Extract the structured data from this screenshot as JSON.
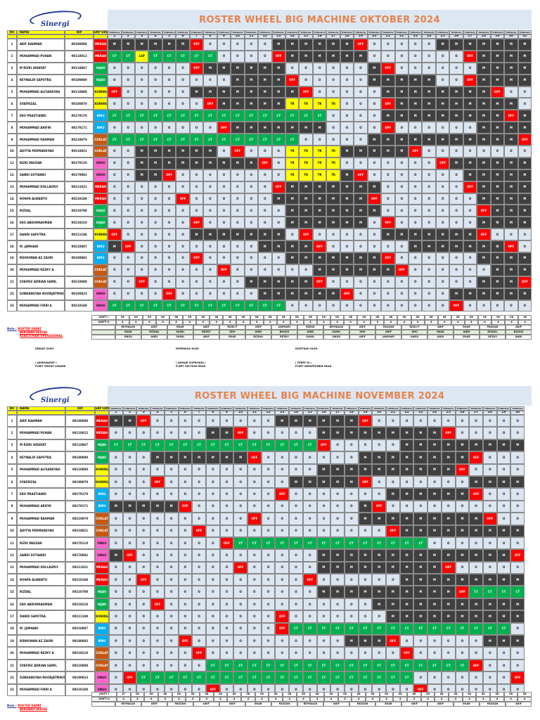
{
  "legend_colors": {
    "O": "#dce6f1",
    "M": "#404040",
    "OFF": "#ff0000",
    "CT": "#00b050",
    "TR": "#ffff00"
  },
  "header": {
    "no": "NO",
    "name": "NAMA",
    "nip": "NIP",
    "group": "GRP DAY",
    "days_label": "TANGGAL"
  },
  "rosters": [
    {
      "title": "ROSTER WHEEL BIG MACHINE OKTOBER 2024",
      "rows": [
        {
          "no": "1",
          "name": "ARIF RAHMAN",
          "nip": "00180888",
          "group": "MERAH",
          "s": "M M M M M M OFF O O O O O M M M M M M OFF O O O O O M M M M M M M"
        },
        {
          "no": "2",
          "name": "MUHAMMAD PUHAN",
          "nip": "00110012",
          "group": "MERAH",
          "s": "CT CT LSP CT CT CT CT CT O O O O OFF M M M M M M O O O O O O O OFF M M M M"
        },
        {
          "no": "3",
          "name": "M RIZKI HIDAYAT",
          "nip": "00110867",
          "group": "HIJAU",
          "s": "O O O O O O OFF M M M M M M O O O O O O M OFF O O O O O O M M M M"
        },
        {
          "no": "4",
          "name": "REYNALDI SAPUTRA",
          "nip": "00180880",
          "group": "HIJAU",
          "s": "O O O O O O O O O M M M M OFF O O O O O M M M M M O O OFF M M M M"
        },
        {
          "no": "5",
          "name": "MUHAMMAD ALFIANSYAH",
          "nip": "00110888",
          "group": "KUNING",
          "s": "OFF O O O O O M M M M M M M M OFF O O O O O M M M M M M M M OFF O O"
        },
        {
          "no": "6",
          "name": "SYAFRIZAL",
          "nip": "00180870",
          "group": "KUNING",
          "s": "O O O O O O O OFF M M M M M TR TR TR TR O O O OFF M M M M M M M M M O"
        },
        {
          "no": "7",
          "name": "EKO PRASTIANDI",
          "nip": "00170170",
          "group": "BIRU",
          "s": "CT CT CT CT CT CT CT CT CT CT CT CT CT CT CT CT O O O O M M M M M M M M M OFF M"
        },
        {
          "no": "8",
          "name": "MUHAMMAD ARIFIN",
          "nip": "00170171",
          "group": "BIRU",
          "s": "O O O O O O O O OFF M M M M M M M O O O O OFF O O O O O O M M M M"
        },
        {
          "no": "9",
          "name": "MUHAMMAD RAHMAN",
          "nip": "00210870",
          "group": "COKLAT",
          "s": "CT CT CT CT CT CT CT CT CT CT CT CT CT CT O O O O O M M M M M M M M M M M OFF"
        },
        {
          "no": "10",
          "name": "ADITYA PERMANSYAH",
          "nip": "00210821",
          "group": "COKLAT",
          "s": "O O M M M M M M O OFF O O O TR TR TR TR M M M M M OFF O O O O O O O O"
        },
        {
          "no": "11",
          "name": "RIZKI PAUZAN",
          "nip": "00170110",
          "group": "UNGU",
          "s": "O O M M M M M M M M M OFF O TR TR TR TR O O O O O O O OFF M M M M M M"
        },
        {
          "no": "12",
          "name": "SANDI SUTIANDI",
          "nip": "00170882",
          "group": "UNGU",
          "s": "O O M M OFF O O O O O O O O TR TR TR TR M OFF O O O O O O O M M M M M"
        },
        {
          "no": "13",
          "name": "MUHAMMAD DOLLASPLY",
          "nip": "00211021",
          "group": "MERAH",
          "s": "O O O O O O O O O O O O OFF M M M M M M M O O O O O O OFF M M M M"
        },
        {
          "no": "14",
          "name": "ROWIN ALWANTO",
          "nip": "00210188",
          "group": "MERAH",
          "s": "O O O O O OFF O O O O O O M M M M M M M OFF O O O O O O O M M M M"
        },
        {
          "no": "15",
          "name": "RIZDAL",
          "nip": "00210788",
          "group": "HIJAU",
          "s": "O O O O O O O O O O O O O M M M M M M M O O O O O O O OFF M M M"
        },
        {
          "no": "16",
          "name": "EKO ABDURRAHMAN",
          "nip": "00210210",
          "group": "HIJAU",
          "s": "O O O O O O OFF O O O O O O M M M M M M O OFF O O O O O O M M M M"
        },
        {
          "no": "17",
          "name": "DANDI SAPUTRA",
          "nip": "00211188",
          "group": "KUNING",
          "s": "OFF O O O O O M M M M M M M O OFF O O O O O M M M M M M M OFF O O O"
        },
        {
          "no": "18",
          "name": "M. JAMHARI",
          "nip": "00210887",
          "group": "BIRU",
          "s": "M OFF O O O O O O O O O M M M M OFF O O O O O O M M M M M M M OFF O"
        },
        {
          "no": "19",
          "name": "RIDHUWAN AZ ZAURI",
          "nip": "00180882",
          "group": "BIRU",
          "s": "O O O O O O OFF O O O O O O M M M M M M M OFF O O O O O O M M M M"
        },
        {
          "no": "20",
          "name": "MUHAMMAD REZKY A",
          "nip": "",
          "group": "COKLAT",
          "s": "O O O O O O O O OFF O O O O O O M M M M M M OFF O O O O O O M M M"
        },
        {
          "no": "21",
          "name": "SYAFRIZ ADRIAN SAMIL",
          "nip": "00210888",
          "group": "COKLAT",
          "s": "O O OFF O O O O O O O M M M M M OFF O O O O O O O O O O O M M M OFF"
        },
        {
          "no": "22",
          "name": "SUBHANSYAH NOORJATMIKO",
          "nip": "00180823",
          "group": "UNGU",
          "s": "O O O O OFF O O O O O O M M M M M M OFF O O O O O O O M M M M M M"
        },
        {
          "no": "23",
          "name": "MUHAMMAD FIKRI A",
          "nip": "00210188",
          "group": "UNGU",
          "s": "CT CT CT CT CT CT CT CT CT CT CT CT CT O O O O O O O O O O O O OFF O O O O O"
        }
      ],
      "summary_rows": [
        {
          "label": "SHIFT I",
          "values": [
            "08",
            "09",
            "08",
            "08",
            "08",
            "08",
            "08",
            "08",
            "08",
            "08",
            "08",
            "08",
            "08",
            "08",
            "08",
            "08",
            "08",
            "08",
            "08",
            "08",
            "08",
            "08",
            "08",
            "08",
            "08",
            "08",
            "08",
            "08",
            "08",
            "08",
            "08"
          ]
        },
        {
          "label": "SHIFT II",
          "values": [
            "4",
            "4",
            "4",
            "4",
            "4",
            "4",
            "4",
            "4",
            "4",
            "4",
            "4",
            "4",
            "4",
            "4",
            "4",
            "4",
            "4",
            "4",
            "4",
            "4",
            "4",
            "4",
            "4",
            "4",
            "4",
            "4",
            "4",
            "4",
            "4",
            "4",
            "4"
          ]
        }
      ],
      "duty_names": [
        [
          "REYNALDI",
          "ARIF",
          "EKAR",
          "ARIF",
          "RIZKI P",
          "ARIF",
          "JAMHARI",
          "RIDHU",
          "REYNALDI",
          "ARIF",
          "FAUZAN",
          "RIZKI P",
          "ARIF",
          "EKAR",
          "PAUZAN",
          "ARIF"
        ],
        [
          "EKAR",
          "RIZDAL",
          "SAMIL",
          "REZKY",
          "IKHI",
          "ANDI",
          "BAGUS",
          "ANDI",
          "SAMIL",
          "IKHI",
          "ARIF",
          "IKHI",
          "HIJAU",
          "ANDI",
          "RIZDAL",
          "BAGUS"
        ],
        [
          "UNGU",
          "ANDI",
          "SAMIL",
          "ARIF",
          "EKAR",
          "RIZDAL",
          "REZKY",
          "SAMIL",
          "UNGU",
          "ARIF",
          "JAMHARI",
          "UNGU",
          "ANDI",
          "EKAR",
          "REZKY",
          "ANDI"
        ]
      ],
      "note_key": "Note :",
      "note_lines": [
        "ROSTER DAPAT",
        "BERUBAH SESUAI",
        "KEBUTUHAN OPERASIONAL"
      ],
      "signatures": [
        {
          "role": "DIBUAT OLEH",
          "name": "( NURHIDAYAT )",
          "title": "FLEET GROUP LEADER"
        },
        {
          "role": "DIPERIKSA OLEH",
          "name": "( AHMAD SUPRIYADI )",
          "title": "FLEET SECTION HEAD"
        },
        {
          "role": "DISETUJUI OLEH",
          "name": "( FERRY M )",
          "title": "FLEET DEPARTEMEN HEAD"
        }
      ]
    },
    {
      "title": "ROSTER WHEEL BIG MACHINE NOVEMBER 2024",
      "rows": [
        {
          "no": "1",
          "name": "ARIF RAHMAN",
          "nip": "00180888",
          "group": "MERAH",
          "s": "M M OFF O O O O O O O O O M M M M M M OFF O O O O O O O O O O O"
        },
        {
          "no": "2",
          "name": "MUHAMMAD PUHAN",
          "nip": "00110012",
          "group": "MERAH",
          "s": "O O O O O O O M M OFF O O O O O M M M M M M M M M OFF O O O O O"
        },
        {
          "no": "3",
          "name": "M RIZKI HIDAYAT",
          "nip": "00110867",
          "group": "HIJAU",
          "s": "CT CT CT CT CT CT CT CT CT CT CT CT CT CT CT OFF O O O O O M M M M M M M M M"
        },
        {
          "no": "4",
          "name": "REYNALDI SAPUTRA",
          "nip": "00180880",
          "group": "HIJAU",
          "s": "O O O M M M M M M M OFF O O O O O O O M M M M M M M M OFF O O O"
        },
        {
          "no": "5",
          "name": "MUHAMMAD ALFIANSYAH",
          "nip": "00110888",
          "group": "KUNING",
          "s": "O O O O O O O O O O O O O O O M M M M M M M M M M OFF O O O O"
        },
        {
          "no": "6",
          "name": "SYAFRIZAL",
          "nip": "00180870",
          "group": "KUNING",
          "s": "O O O OFF O O O O O O O O O M M M M M OFF O O O O O O O M M M M"
        },
        {
          "no": "7",
          "name": "EKO PRASTIANDI",
          "nip": "00170170",
          "group": "BIRU",
          "s": "O O O O O O O O O O O O OFF O O O O O O O M M M M M M OFF O O O"
        },
        {
          "no": "8",
          "name": "MUHAMMAD ARIFIN",
          "nip": "00170171",
          "group": "BIRU",
          "s": "M M M M M OFF O O O O O O O O O O O O M OFF O O O O O O O O O O"
        },
        {
          "no": "9",
          "name": "MUHAMMAD RAHMAN",
          "nip": "00210870",
          "group": "COKLAT",
          "s": "O O O O O O O O O O OFF O O O O O O O M M M M M M M M M OFF O O"
        },
        {
          "no": "10",
          "name": "ADITYA PERMANSYAH",
          "nip": "00210821",
          "group": "COKLAT",
          "s": "O O O O O O OFF O O O O O O O O O O O O O OFF M M M M M M M M M"
        },
        {
          "no": "11",
          "name": "RIZKI PAUZAN",
          "nip": "00170110",
          "group": "UNGU",
          "s": "O O O O O O O O OFF CT CT CT CT CT CT CT CT CT CT CT CT CT CT O O O O O O O"
        },
        {
          "no": "12",
          "name": "SANDI SUTIANDI",
          "nip": "00170882",
          "group": "UNGU",
          "s": "M OFF O O O O O O O O O O O O O M M M M M M M M M M M M M M OFF"
        },
        {
          "no": "13",
          "name": "MUHAMMAD DOLLASPLY",
          "nip": "00211021",
          "group": "MERAH",
          "s": "O O O O O O O O O OFF O O O O O M M M M M M M M M OFF O O O O O"
        },
        {
          "no": "14",
          "name": "ROWIN ALWANTO",
          "nip": "00210188",
          "group": "MERAH",
          "s": "O O OFF O O O O O O O O O O O OFF O O O O O O M M M M M M M M M"
        },
        {
          "no": "15",
          "name": "RIZDAL",
          "nip": "00210788",
          "group": "HIJAU",
          "s": "O O O O O O O O O O O O O O O M M M M M M M M M M OFF CT CT CT CT"
        },
        {
          "no": "16",
          "name": "EKO ABDURRAHMAN",
          "nip": "00210210",
          "group": "HIJAU",
          "s": "O O O OFF O O O O O O O O O O O O O O O M M M M M M M M M M M"
        },
        {
          "no": "17",
          "name": "DANDI SAPUTRA",
          "nip": "00211188",
          "group": "KUNING",
          "s": "O O O O O O O O O O O O OFF O O O O O O O M M M M M M M M M M"
        },
        {
          "no": "18",
          "name": "M. JAMHARI",
          "nip": "00210887",
          "group": "BIRU",
          "s": "O O O O O O O O O O O O OFF CT CT CT CT CT CT CT CT CT CT CT CT CT CT CT CT O"
        },
        {
          "no": "19",
          "name": "RIDHUWAN AZ ZAURI",
          "nip": "00180882",
          "group": "BIRU",
          "s": "O O O O O OFF O O O O O O O O O O O M M M OFF O O O O O O M M M"
        },
        {
          "no": "20",
          "name": "MUHAMMAD REZKY A",
          "nip": "00210210",
          "group": "COKLAT",
          "s": "O O O O O O OFF O O O O O O O O O O O O O O OFF O O O O O O O O"
        },
        {
          "no": "21",
          "name": "SYAFRIZ ADRIAN SAMIL",
          "nip": "00210888",
          "group": "COKLAT",
          "s": "O O O O O O O CT CT CT CT CT CT CT CT CT CT CT CT CT CT CT CT CT CT CT OFF O O O"
        },
        {
          "no": "22",
          "name": "SUBHANSYAH NOORJATMIKO",
          "nip": "00180823",
          "group": "UNGU",
          "s": "O OFF CT CT CT CT CT CT CT CT CT CT CT CT CT CT CT CT CT CT CT CT O O O O O O O OFF"
        },
        {
          "no": "23",
          "name": "MUHAMMAD FIKRI A",
          "nip": "00210188",
          "group": "UNGU",
          "s": "O O O O O O O OFF O O O O O O O O O O O O O O OFF O O O O O O O"
        }
      ],
      "summary_rows": [
        {
          "label": "SHIFT I",
          "values": [
            "07",
            "08",
            "08",
            "08",
            "08",
            "08",
            "08",
            "08",
            "08",
            "08",
            "08",
            "08",
            "08",
            "08",
            "08",
            "08",
            "08",
            "08",
            "08",
            "08",
            "08",
            "08",
            "08",
            "08",
            "08",
            "08",
            "08",
            "08",
            "08",
            "08"
          ]
        },
        {
          "label": "SHIFT II",
          "values": [
            "4",
            "4",
            "4",
            "4",
            "4",
            "4",
            "4",
            "4",
            "4",
            "4",
            "4",
            "4",
            "4",
            "4",
            "4",
            "4",
            "4",
            "4",
            "4",
            "4",
            "4",
            "4",
            "4",
            "4",
            "4",
            "4",
            "4",
            "4",
            "4",
            "4"
          ]
        }
      ],
      "duty_names": [
        [
          "REYNALDI",
          "ARIF",
          "FAUZAN",
          "ARIF",
          "ARIF",
          "EKAR",
          "FAUZAN",
          "REYNALDI",
          "ARIF",
          "FAUZAN",
          "EKAR",
          "ARIF",
          "ARIF",
          "EKAR",
          "FAUZAN",
          "ARIF"
        ]
      ],
      "note_key": "Note :",
      "note_lines": [
        "ROSTER DAPAT",
        "BERUBAH SESUAI"
      ],
      "signatures": []
    }
  ]
}
